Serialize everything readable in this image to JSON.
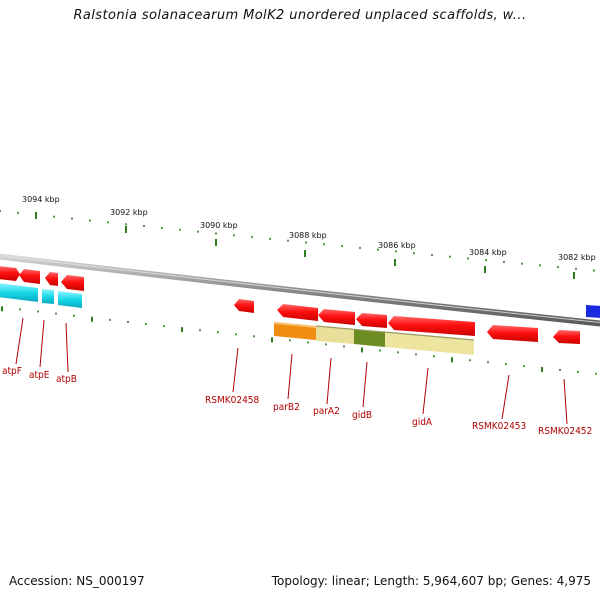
{
  "title": "Ralstonia solanacearum MolK2 unordered unplaced scaffolds, w...",
  "footer": {
    "accession_label": "Accession:",
    "accession": "NS_000197",
    "topology_label": "Topology:",
    "topology": "linear",
    "length_label": "Length:",
    "length": "5,964,607 bp",
    "genes_label": "Genes:",
    "genes": "4,975"
  },
  "colors": {
    "backbone": "#8c8c8c",
    "tick": "#2e7d1e",
    "label": "#b00000",
    "forward_gene": "#ff1a1a",
    "feature_cyan": "#18d8e8",
    "feature_orange": "#f08c10",
    "feature_khaki": "#e8e09a",
    "feature_olive": "#6a8c20",
    "feature_blue": "#1a2ae0"
  },
  "ruler": {
    "major_ticks": [
      "3094 kbp",
      "3092 kbp",
      "3090 kbp",
      "3088 kbp",
      "3086 kbp",
      "3084 kbp",
      "3082 kbp"
    ]
  },
  "genes_on_map": [
    "atpF",
    "atpE",
    "atpB",
    "RSMK02458",
    "parB2",
    "parA2",
    "gidB",
    "gidA",
    "RSMK02453",
    "RSMK02452"
  ]
}
